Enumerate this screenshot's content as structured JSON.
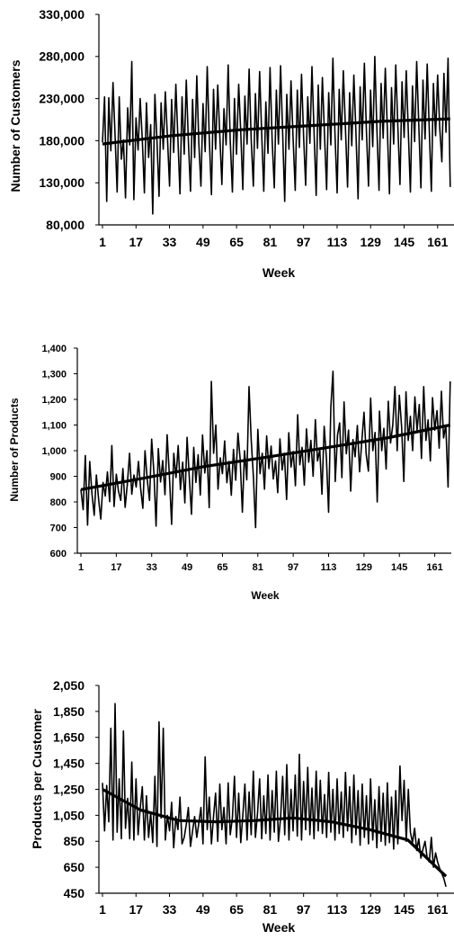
{
  "chart_data": [
    {
      "type": "line",
      "title": "",
      "xlabel": "Week",
      "ylabel": "Number of Customers",
      "ylim": [
        80000,
        330000
      ],
      "yticks": [
        "80,000",
        "130,000",
        "180,000",
        "230,000",
        "280,000",
        "330,000"
      ],
      "xticks": [
        "1",
        "17",
        "33",
        "49",
        "65",
        "81",
        "97",
        "113",
        "129",
        "145",
        "161"
      ],
      "grid": false,
      "legend": "none",
      "series": [
        {
          "values": [
            178000,
            232000,
            108000,
            231000,
            168000,
            249000,
            186000,
            119000,
            232000,
            158000,
            181000,
            112000,
            219000,
            175000,
            274000,
            110000,
            207000,
            169000,
            230000,
            181000,
            118000,
            225000,
            160000,
            199000,
            93000,
            235000,
            180000,
            114000,
            225000,
            170000,
            238000,
            185000,
            126000,
            229000,
            166000,
            247000,
            182000,
            117000,
            232000,
            164000,
            252000,
            181000,
            120000,
            229000,
            160000,
            257000,
            176000,
            126000,
            224000,
            167000,
            268000,
            183000,
            116000,
            241000,
            170000,
            246000,
            186000,
            128000,
            218000,
            175000,
            270000,
            180000,
            119000,
            230000,
            164000,
            247000,
            190000,
            122000,
            233000,
            176000,
            265000,
            182000,
            126000,
            236000,
            171000,
            262000,
            188000,
            120000,
            226000,
            165000,
            267000,
            181000,
            124000,
            240000,
            176000,
            269000,
            189000,
            108000,
            235000,
            170000,
            251000,
            183000,
            121000,
            240000,
            172000,
            259000,
            185000,
            127000,
            232000,
            177000,
            268000,
            192000,
            115000,
            246000,
            170000,
            255000,
            186000,
            122000,
            237000,
            175000,
            278000,
            188000,
            118000,
            241000,
            181000,
            263000,
            193000,
            125000,
            237000,
            174000,
            258000,
            190000,
            111000,
            244000,
            181000,
            272000,
            191000,
            126000,
            240000,
            173000,
            280000,
            195000,
            121000,
            248000,
            183000,
            266000,
            192000,
            117000,
            243000,
            176000,
            270000,
            198000,
            128000,
            250000,
            184000,
            263000,
            190000,
            119000,
            245000,
            179000,
            274000,
            200000,
            124000,
            252000,
            182000,
            271000,
            193000,
            120000,
            248000,
            186000,
            258000,
            196000,
            155000,
            260000,
            190000,
            278000,
            125000
          ],
          "trend": [
            176000,
            186000,
            193000,
            198000,
            203000,
            206000
          ]
        }
      ]
    },
    {
      "type": "line",
      "title": "",
      "xlabel": "Week",
      "ylabel": "Number of Products",
      "ylim": [
        600,
        1400
      ],
      "yticks": [
        "600",
        "700",
        "800",
        "900",
        "1,000",
        "1,100",
        "1,200",
        "1,300",
        "1,400"
      ],
      "xticks": [
        "1",
        "17",
        "33",
        "49",
        "65",
        "81",
        "97",
        "113",
        "129",
        "145",
        "161"
      ],
      "grid": false,
      "legend": "none",
      "series": [
        {
          "values": [
            848,
            770,
            981,
            710,
            958,
            832,
            748,
            905,
            810,
            733,
            876,
            823,
            917,
            801,
            1020,
            782,
            908,
            842,
            806,
            930,
            779,
            872,
            990,
            830,
            905,
            858,
            958,
            854,
            775,
            1000,
            887,
            806,
            1045,
            915,
            706,
            1008,
            878,
            961,
            828,
            1062,
            904,
            713,
            990,
            895,
            1020,
            848,
            955,
            796,
            1052,
            900,
            752,
            1013,
            876,
            984,
            827,
            1061,
            913,
            1000,
            778,
            1270,
            990,
            1100,
            850,
            972,
            910,
            1038,
            875,
            958,
            826,
            1005,
            885,
            1068,
            968,
            760,
            1000,
            886,
            1250,
            1045,
            896,
            700,
            1083,
            910,
            990,
            850,
            1058,
            930,
            1018,
            890,
            960,
            836,
            1046,
            925,
            990,
            810,
            1070,
            936,
            997,
            863,
            1140,
            945,
            1013,
            866,
            1085,
            955,
            1040,
            900,
            1121,
            960,
            1004,
            830,
            1095,
            970,
            760,
            1170,
            1310,
            880,
            1060,
            1108,
            895,
            1190,
            988,
            1080,
            842,
            1043,
            976,
            1098,
            918,
            1034,
            1150,
            986,
            920,
            1205,
            1000,
            1071,
            800,
            1154,
            1000,
            1087,
            928,
            1193,
            1030,
            1100,
            1250,
            1000,
            1216,
            1094,
            880,
            1230,
            1040,
            1134,
            1000,
            1210,
            1078,
            1180,
            970,
            1250,
            1040,
            1120,
            960,
            1207,
            1080,
            1156,
            1010,
            1232,
            1050,
            1100,
            858,
            1270
          ],
          "trend": [
            848,
            892,
            938,
            974,
            1012,
            1051,
            1100
          ]
        }
      ]
    },
    {
      "type": "line",
      "title": "",
      "xlabel": "Week",
      "ylabel": "Products per Customer",
      "ylim": [
        450,
        2050
      ],
      "yticks": [
        "450",
        "650",
        "850",
        "1,050",
        "1,250",
        "1,450",
        "1,650",
        "1,850",
        "2,050"
      ],
      "xticks": [
        "1",
        "17",
        "33",
        "49",
        "65",
        "81",
        "97",
        "113",
        "129",
        "145",
        "161"
      ],
      "grid": false,
      "legend": "none",
      "series": [
        {
          "values": [
            1300,
            930,
            1280,
            1000,
            1720,
            860,
            1910,
            920,
            1330,
            870,
            1700,
            950,
            1180,
            870,
            1460,
            860,
            1330,
            900,
            1100,
            1270,
            860,
            1200,
            880,
            1070,
            840,
            1350,
            810,
            1770,
            1030,
            1720,
            860,
            1050,
            930,
            1150,
            800,
            1040,
            940,
            1190,
            830,
            880,
            980,
            1110,
            810,
            930,
            1040,
            880,
            990,
            1110,
            830,
            1500,
            940,
            1190,
            830,
            1040,
            1220,
            850,
            1290,
            940,
            1110,
            830,
            1300,
            900,
            1030,
            1350,
            880,
            1220,
            840,
            1050,
            1290,
            860,
            1230,
            900,
            1390,
            880,
            1060,
            1330,
            870,
            1200,
            910,
            1360,
            860,
            1240,
            920,
            1390,
            850,
            1030,
            1350,
            900,
            1440,
            860,
            1250,
            930,
            1360,
            890,
            1520,
            860,
            1310,
            940,
            1420,
            900,
            1260,
            870,
            1390,
            930,
            1320,
            910,
            1210,
            880,
            1380,
            920,
            1250,
            860,
            1330,
            910,
            1230,
            880,
            1380,
            930,
            1270,
            840,
            1360,
            900,
            1240,
            820,
            1290,
            880,
            1200,
            830,
            1330,
            860,
            1170,
            800,
            1270,
            850,
            1220,
            820,
            1300,
            840,
            1190,
            790,
            1240,
            830,
            1430,
            1010,
            1320,
            850,
            1250,
            920,
            840,
            950,
            780,
            870,
            720,
            790,
            850,
            720,
            690,
            880,
            650,
            760,
            690,
            640,
            600,
            560,
            500
          ],
          "trend": [
            1250,
            1090,
            1010,
            1000,
            1010,
            1030,
            1000,
            940,
            860,
            580
          ]
        }
      ]
    }
  ]
}
